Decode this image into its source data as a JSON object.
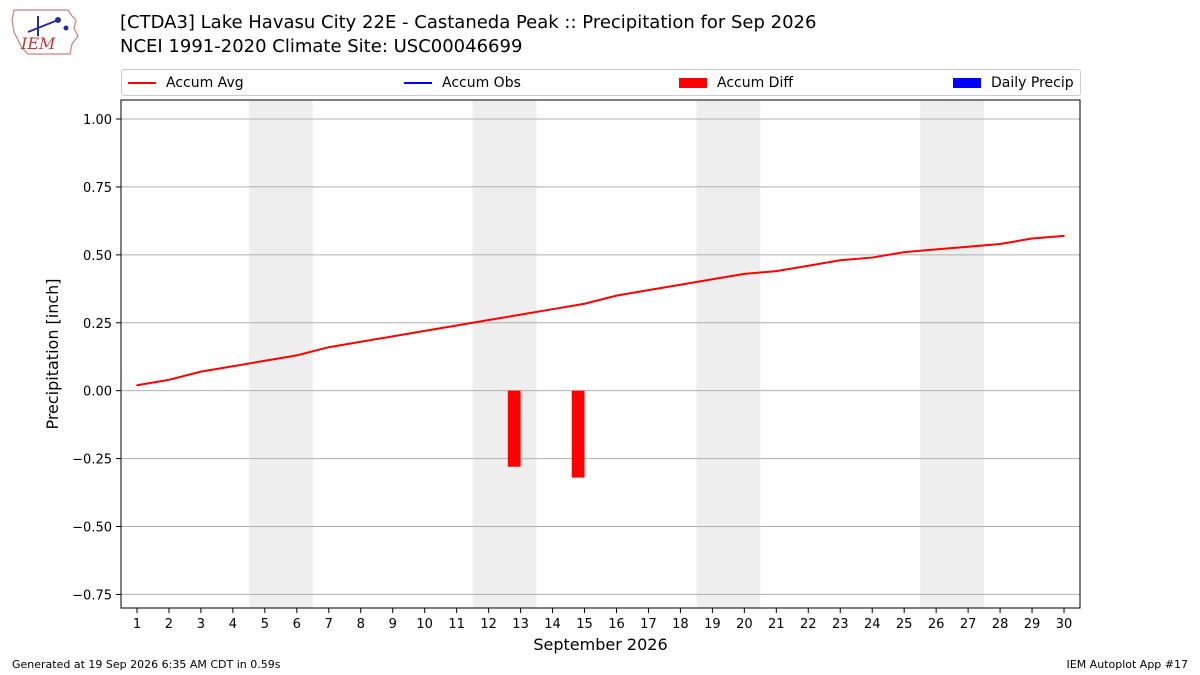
{
  "header": {
    "logo_text": "IEM",
    "title_line1": "[CTDA3] Lake Havasu City 22E - Castaneda Peak :: Precipitation for Sep 2026",
    "title_line2": "NCEI 1991-2020 Climate Site: USC00046699"
  },
  "legend": {
    "placement": "top",
    "items": [
      {
        "label": "Accum Avg",
        "color": "#ff0000",
        "kind": "line"
      },
      {
        "label": "Accum Obs",
        "color": "#0000ff",
        "kind": "line"
      },
      {
        "label": "Accum Diff",
        "color": "#ff0000",
        "kind": "bar"
      },
      {
        "label": "Daily Precip",
        "color": "#0000ff",
        "kind": "bar"
      }
    ]
  },
  "chart_data": {
    "type": "line",
    "xlabel": "September 2026",
    "ylabel": "Precipitation [inch]",
    "ylim": [
      -0.8,
      1.07
    ],
    "xlim": [
      0.5,
      30.5
    ],
    "yticks": [
      -0.75,
      -0.5,
      -0.25,
      0.0,
      0.25,
      0.5,
      0.75,
      1.0
    ],
    "yticklabels": [
      "−0.75",
      "−0.50",
      "−0.25",
      "0.00",
      "0.25",
      "0.50",
      "0.75",
      "1.00"
    ],
    "x": [
      1,
      2,
      3,
      4,
      5,
      6,
      7,
      8,
      9,
      10,
      11,
      12,
      13,
      14,
      15,
      16,
      17,
      18,
      19,
      20,
      21,
      22,
      23,
      24,
      25,
      26,
      27,
      28,
      29,
      30
    ],
    "xticklabels": [
      "1",
      "2",
      "3",
      "4",
      "5",
      "6",
      "7",
      "8",
      "9",
      "10",
      "11",
      "12",
      "13",
      "14",
      "15",
      "16",
      "17",
      "18",
      "19",
      "20",
      "21",
      "22",
      "23",
      "24",
      "25",
      "26",
      "27",
      "28",
      "29",
      "30"
    ],
    "grid": "horizontal",
    "weekend_shading": [
      [
        4.5,
        6.5
      ],
      [
        11.5,
        13.5
      ],
      [
        18.5,
        20.5
      ],
      [
        25.5,
        27.5
      ]
    ],
    "series": [
      {
        "name": "Accum Avg",
        "type": "line",
        "color": "#ff0000",
        "values": [
          0.02,
          0.04,
          0.07,
          0.09,
          0.11,
          0.13,
          0.16,
          0.18,
          0.2,
          0.22,
          0.24,
          0.26,
          0.28,
          0.3,
          0.32,
          0.35,
          0.37,
          0.39,
          0.41,
          0.43,
          0.44,
          0.46,
          0.48,
          0.49,
          0.51,
          0.52,
          0.53,
          0.54,
          0.56,
          0.57
        ]
      },
      {
        "name": "Accum Diff",
        "type": "bar",
        "color": "#ff0000",
        "points": [
          {
            "x": 12.8,
            "value": -0.28
          },
          {
            "x": 14.8,
            "value": -0.32
          }
        ]
      }
    ]
  },
  "footer": {
    "left": "Generated at 19 Sep 2026 6:35 AM CDT in 0.59s",
    "right": "IEM Autoplot App #17"
  }
}
